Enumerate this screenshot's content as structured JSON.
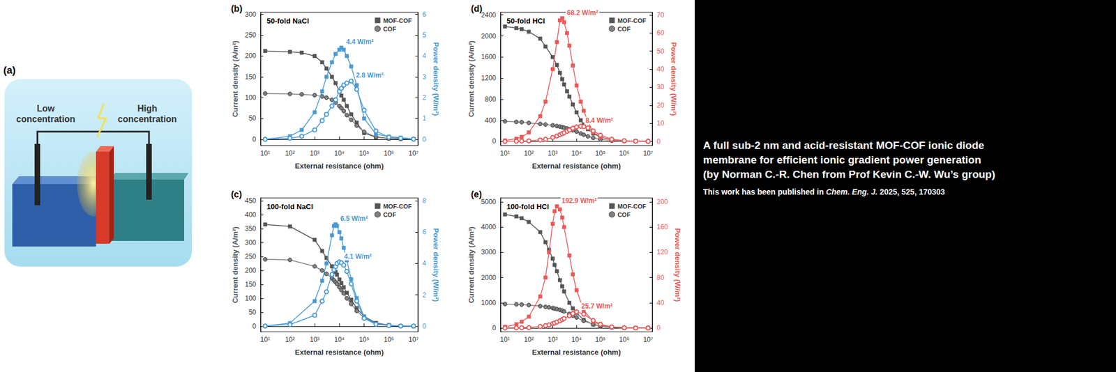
{
  "chart_data": [
    {
      "type": "line",
      "label": "(b)",
      "title": "50-fold NaCl",
      "x_label": "External resistance (ohm)",
      "y_label": "Current density (A/m²)",
      "y2_label": "Power density (W/m²)",
      "log": "x",
      "grid": false,
      "legend": "upper right",
      "xlim": [
        6.5,
        15000000
      ],
      "xticks": [
        {
          "value": 10,
          "label": "10¹"
        },
        {
          "value": 100,
          "label": "10²"
        },
        {
          "value": 1000,
          "label": "10³"
        },
        {
          "value": 10000,
          "label": "10⁴"
        },
        {
          "value": 100000,
          "label": "10⁵"
        },
        {
          "value": 1000000,
          "label": "10⁶"
        },
        {
          "value": 10000000,
          "label": "10⁷"
        }
      ],
      "ylim": [
        -15,
        305
      ],
      "yticks": [
        0,
        50,
        100,
        150,
        200,
        250,
        300
      ],
      "y2lim": [
        -0.3,
        6.1
      ],
      "y2ticks": [
        0,
        1,
        2,
        3,
        4,
        5,
        6
      ],
      "x": [
        10,
        100,
        300,
        1000,
        2000,
        3000,
        5000,
        7000,
        10000,
        12000,
        15000,
        20000,
        30000,
        50000,
        100000,
        300000,
        1000000,
        3000000,
        10000000
      ],
      "series": [
        {
          "name": "MOF-COF",
          "color": "#555555",
          "marker": "square",
          "values": [
            212,
            210,
            208,
            200,
            185,
            170,
            150,
            135,
            115,
            105,
            95,
            80,
            60,
            40,
            15,
            5,
            2,
            1,
            0
          ]
        },
        {
          "name": "COF",
          "color": "#808080",
          "marker": "circle",
          "values": [
            110,
            109,
            108,
            106,
            103,
            100,
            95,
            88,
            80,
            75,
            68,
            58,
            47,
            33,
            18,
            6,
            2,
            1,
            0
          ]
        },
        {
          "name": "MOF-COF",
          "color": "#4a9ad4",
          "marker": "square",
          "axis": "y2",
          "annotation": "4.4 W/m²",
          "values": [
            0,
            0.15,
            0.45,
            1.3,
            2.3,
            3.0,
            3.7,
            4.1,
            4.3,
            4.4,
            4.3,
            4.0,
            3.5,
            2.6,
            1.0,
            0.25,
            0.13,
            0.08,
            0.02
          ]
        },
        {
          "name": "COF",
          "color": "#4a9ad4",
          "marker": "open_circle",
          "axis": "y2",
          "annotation": "2.8 W/m²",
          "values": [
            0,
            0.05,
            0.15,
            0.45,
            0.9,
            1.2,
            1.6,
            1.9,
            2.3,
            2.45,
            2.6,
            2.7,
            2.8,
            2.4,
            1.4,
            0.4,
            0.1,
            0.05,
            0.01
          ]
        }
      ]
    },
    {
      "type": "line",
      "label": "(c)",
      "title": "100-fold NaCl",
      "x_label": "External resistance (ohm)",
      "y_label": "Current density (A/m²)",
      "y2_label": "Power density (W/m²)",
      "log": "x",
      "grid": false,
      "legend": "upper right",
      "xlim": [
        6.5,
        15000000
      ],
      "xticks": [
        {
          "value": 10,
          "label": "10¹"
        },
        {
          "value": 100,
          "label": "10²"
        },
        {
          "value": 1000,
          "label": "10³"
        },
        {
          "value": 10000,
          "label": "10⁴"
        },
        {
          "value": 100000,
          "label": "10⁵"
        },
        {
          "value": 1000000,
          "label": "10⁶"
        },
        {
          "value": 10000000,
          "label": "10⁷"
        }
      ],
      "ylim": [
        -20,
        460
      ],
      "yticks": [
        0,
        50,
        100,
        150,
        200,
        250,
        300,
        350,
        400,
        450
      ],
      "y2lim": [
        -0.36,
        8.18
      ],
      "y2ticks": [
        0,
        2,
        4,
        6,
        8
      ],
      "x": [
        10,
        100,
        1000,
        2000,
        3000,
        5000,
        6000,
        7000,
        8000,
        10000,
        12000,
        15000,
        20000,
        30000,
        50000,
        100000,
        300000,
        1000000,
        3000000,
        10000000
      ],
      "series": [
        {
          "name": "MOF-COF",
          "color": "#555555",
          "marker": "square",
          "values": [
            365,
            358,
            310,
            270,
            245,
            215,
            205,
            195,
            185,
            168,
            155,
            140,
            120,
            95,
            65,
            35,
            12,
            4,
            1,
            0
          ]
        },
        {
          "name": "COF",
          "color": "#808080",
          "marker": "circle",
          "values": [
            240,
            238,
            215,
            200,
            188,
            172,
            165,
            158,
            152,
            140,
            130,
            118,
            100,
            80,
            55,
            30,
            10,
            3,
            1,
            0
          ]
        },
        {
          "name": "MOF-COF",
          "color": "#4a9ad4",
          "marker": "square",
          "axis": "y2",
          "annotation": "6.5 W/m²",
          "values": [
            0.01,
            0.2,
            1.6,
            2.9,
            4.0,
            5.8,
            6.4,
            6.5,
            6.4,
            6.0,
            5.6,
            5.0,
            4.2,
            3.0,
            1.8,
            0.6,
            0.15,
            0.05,
            0.02,
            0.01
          ]
        },
        {
          "name": "COF",
          "color": "#4a9ad4",
          "marker": "open_circle",
          "axis": "y2",
          "annotation": "4.1 W/m²",
          "values": [
            0.01,
            0.1,
            0.7,
            1.6,
            2.2,
            3.3,
            3.6,
            3.8,
            4.0,
            4.1,
            4.05,
            3.9,
            3.5,
            2.7,
            1.6,
            0.5,
            0.12,
            0.04,
            0.01,
            0.01
          ]
        }
      ]
    },
    {
      "type": "line",
      "label": "(d)",
      "title": "50-fold HCl",
      "x_label": "External resistance (ohm)",
      "y_label": "Current density (A/m²)",
      "y2_label": "Power density (W/m²)",
      "log": "x",
      "grid": false,
      "legend": "upper right",
      "xlim": [
        6.5,
        15000000
      ],
      "xticks": [
        {
          "value": 10,
          "label": "10¹"
        },
        {
          "value": 100,
          "label": "10²"
        },
        {
          "value": 1000,
          "label": "10³"
        },
        {
          "value": 10000,
          "label": "10⁴"
        },
        {
          "value": 100000,
          "label": "10⁵"
        },
        {
          "value": 1000000,
          "label": "10⁶"
        },
        {
          "value": 10000000,
          "label": "10⁷"
        }
      ],
      "ylim": [
        -80,
        2450
      ],
      "yticks": [
        0,
        400,
        800,
        1200,
        1600,
        2000,
        2400
      ],
      "y2lim": [
        -2.3,
        71.5
      ],
      "y2ticks": [
        0,
        10,
        20,
        30,
        40,
        50,
        60,
        70
      ],
      "x": [
        10,
        30,
        50,
        100,
        300,
        500,
        1000,
        1500,
        2000,
        2500,
        3000,
        4000,
        5000,
        7000,
        10000,
        15000,
        20000,
        30000,
        50000,
        100000,
        300000,
        1000000,
        3000000,
        10000000
      ],
      "series": [
        {
          "name": "MOF-COF",
          "color": "#555555",
          "marker": "square",
          "values": [
            2180,
            2150,
            2130,
            2080,
            1950,
            1800,
            1600,
            1450,
            1300,
            1180,
            1080,
            950,
            850,
            700,
            550,
            400,
            320,
            230,
            150,
            80,
            30,
            10,
            3,
            1
          ]
        },
        {
          "name": "COF",
          "color": "#808080",
          "marker": "circle",
          "values": [
            380,
            370,
            365,
            350,
            330,
            320,
            305,
            290,
            280,
            270,
            260,
            245,
            230,
            210,
            185,
            150,
            125,
            95,
            65,
            35,
            12,
            4,
            1,
            0
          ]
        },
        {
          "name": "MOF-COF",
          "color": "#e85a5a",
          "marker": "square",
          "axis": "y2",
          "annotation": "68.2 W/m²",
          "values": [
            0.5,
            1.5,
            2.5,
            5,
            14,
            22,
            40,
            55,
            67,
            68.2,
            66,
            60,
            53,
            42,
            31,
            22,
            17,
            11,
            5,
            2.5,
            0.8,
            0.3,
            0.1,
            0.05
          ]
        },
        {
          "name": "COF",
          "color": "#e85a5a",
          "marker": "open_circle",
          "axis": "y2",
          "annotation": "8.4 W/m²",
          "values": [
            0,
            0.1,
            0.2,
            0.3,
            0.8,
            1.2,
            2.2,
            3.0,
            3.7,
            4.3,
            4.8,
            5.6,
            6.3,
            7.3,
            8.0,
            8.4,
            8.2,
            7.5,
            5.8,
            3.5,
            1.2,
            0.4,
            0.1,
            0.02
          ]
        }
      ]
    },
    {
      "type": "line",
      "label": "(e)",
      "title": "100-fold HCl",
      "x_label": "External resistance (ohm)",
      "y_label": "Current density (A/m²)",
      "y2_label": "Power density (W/m²)",
      "log": "x",
      "grid": false,
      "legend": "upper right",
      "xlim": [
        6.5,
        15000000
      ],
      "xticks": [
        {
          "value": 10,
          "label": "10¹"
        },
        {
          "value": 100,
          "label": "10²"
        },
        {
          "value": 1000,
          "label": "10³"
        },
        {
          "value": 10000,
          "label": "10⁴"
        },
        {
          "value": 100000,
          "label": "10⁵"
        },
        {
          "value": 1000000,
          "label": "10⁶"
        },
        {
          "value": 10000000,
          "label": "10⁷"
        }
      ],
      "ylim": [
        -150,
        5150
      ],
      "yticks": [
        0,
        1000,
        2000,
        3000,
        4000,
        5000
      ],
      "y2lim": [
        -6,
        206
      ],
      "y2ticks": [
        0,
        40,
        80,
        120,
        160,
        200
      ],
      "x": [
        10,
        30,
        50,
        100,
        300,
        500,
        700,
        1000,
        1200,
        1500,
        2000,
        2500,
        3000,
        5000,
        7000,
        10000,
        20000,
        50000,
        100000,
        300000,
        1000000,
        3000000,
        10000000
      ],
      "series": [
        {
          "name": "MOF-COF",
          "color": "#555555",
          "marker": "square",
          "values": [
            4500,
            4420,
            4350,
            4200,
            3800,
            3400,
            3100,
            2750,
            2500,
            2250,
            1900,
            1650,
            1450,
            1000,
            780,
            600,
            320,
            140,
            75,
            25,
            8,
            3,
            1
          ]
        },
        {
          "name": "COF",
          "color": "#808080",
          "marker": "circle",
          "values": [
            950,
            940,
            930,
            910,
            870,
            840,
            820,
            790,
            770,
            750,
            720,
            690,
            660,
            560,
            490,
            420,
            280,
            150,
            80,
            27,
            9,
            3,
            1
          ]
        },
        {
          "name": "MOF-COF",
          "color": "#e85a5a",
          "marker": "square",
          "axis": "y2",
          "annotation": "192.9 W/m²",
          "values": [
            2,
            6,
            10,
            18,
            50,
            80,
            120,
            165,
            185,
            192.9,
            188,
            175,
            160,
            115,
            85,
            60,
            28,
            10,
            5,
            1.5,
            0.5,
            0.2,
            0.05
          ]
        },
        {
          "name": "COF",
          "color": "#e85a5a",
          "marker": "open_circle",
          "axis": "y2",
          "annotation": "25.7 W/m²",
          "values": [
            0.1,
            0.3,
            0.5,
            0.8,
            2.5,
            3.8,
            5,
            7,
            8,
            9.5,
            11.5,
            13.5,
            15,
            19.5,
            23,
            25.7,
            22,
            12,
            6,
            1.8,
            0.6,
            0.2,
            0.05
          ]
        }
      ]
    }
  ],
  "diagram": {
    "label": "(a)",
    "left_text": "Low concentration",
    "right_text": "High concentration"
  },
  "caption": {
    "headline": [
      "A full sub-2 nm and acid-resistant MOF-COF ionic diode",
      "membrane for efficient ionic gradient power generation",
      "(by Norman C.-R. Chen from Prof Kevin C.-W. Wu’s group)"
    ],
    "prefix": "This work has been published in",
    "journal": "Chem. Eng. J.",
    "citation": "2025, 525, 170303"
  }
}
